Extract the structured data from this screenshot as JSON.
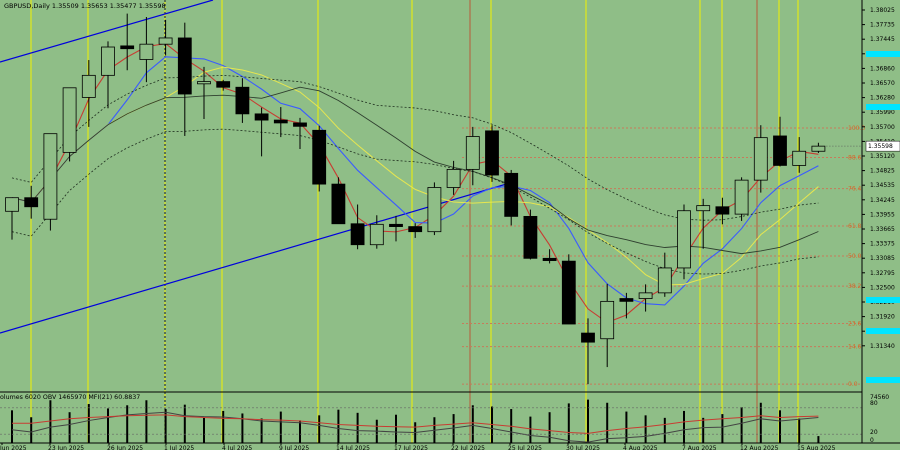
{
  "header": {
    "symbol_line": "GBPUSD,Daily  1.35509  1.35653  1.35477  1.35598"
  },
  "indicator_header": "olumes 6020  OBV 1465970  MFI(21) 60.8837",
  "colors": {
    "background": "#8fbe87",
    "bull_body": "#8fbe87",
    "bear_body": "#000000",
    "vertical_marker": "#f2f200",
    "trendline": "#0000dd",
    "ma_red": "#c83c32",
    "ma_blue": "#3b5bff",
    "ma_yellow": "#e6e650",
    "ma_dark": "#2f3f2f",
    "fib_line": "#c87a5a",
    "fib_label": "#d26a2a",
    "cyan_marker": "#00e5ff",
    "obv": "#444444",
    "mfi": "#c83c32"
  },
  "price_axis": {
    "labels": [
      "1.38025",
      "1.37735",
      "1.37445",
      "1.37155",
      "1.36860",
      "1.36570",
      "1.36280",
      "1.35990",
      "1.35700",
      "1.35410",
      "1.35120",
      "1.34825",
      "1.34535",
      "1.34245",
      "1.33955",
      "1.33665",
      "1.33375",
      "1.33085",
      "1.32795",
      "1.32500",
      "1.32210",
      "1.31920",
      "1.31630",
      "1.31340"
    ],
    "current_price_label": "1.35598"
  },
  "indicator_axis": {
    "labels": [
      "74560",
      "80",
      "20",
      "0"
    ]
  },
  "date_axis": {
    "labels": [
      "Jun 2025",
      "23 Jun 2025",
      "26 Jun 2025",
      "1 Jul 2025",
      "4 Jul 2025",
      "9 Jul 2025",
      "14 Jul 2025",
      "17 Jul 2025",
      "22 Jul 2025",
      "25 Jul 2025",
      "30 Jul 2025",
      "4 Aug 2025",
      "7 Aug 2025",
      "12 Aug 2025",
      "15 Aug 2025"
    ]
  },
  "fib_levels": [
    {
      "label": "100.0",
      "price": 1.3592
    },
    {
      "label": "88.6",
      "price": 1.354
    },
    {
      "label": "76.4",
      "price": 1.3485
    },
    {
      "label": "61.8",
      "price": 1.3419
    },
    {
      "label": "50.0",
      "price": 1.3366
    },
    {
      "label": "38.2",
      "price": 1.3313
    },
    {
      "label": "23.6",
      "price": 1.3247
    },
    {
      "label": "14.6",
      "price": 1.3206
    },
    {
      "label": "0.0",
      "price": 1.314
    }
  ],
  "chart_data": {
    "type": "candlestick",
    "title": "GBPUSD,Daily  1.35509  1.35653  1.35477  1.35598",
    "ylim": [
      1.3126,
      1.3818
    ],
    "ohlc": [
      [
        1.3445,
        1.3469,
        1.3395,
        1.3469
      ],
      [
        1.3469,
        1.349,
        1.3432,
        1.3453
      ],
      [
        1.3431,
        1.3582,
        1.3411,
        1.3582
      ],
      [
        1.3549,
        1.3663,
        1.3533,
        1.3663
      ],
      [
        1.3646,
        1.3712,
        1.3594,
        1.3685
      ],
      [
        1.3685,
        1.3745,
        1.3627,
        1.3735
      ],
      [
        1.3737,
        1.3794,
        1.3694,
        1.3732
      ],
      [
        1.3713,
        1.3788,
        1.3673,
        1.374
      ],
      [
        1.374,
        1.3783,
        1.372,
        1.3751
      ],
      [
        1.3751,
        1.3778,
        1.3578,
        1.3652
      ],
      [
        1.367,
        1.37,
        1.3608,
        1.3674
      ],
      [
        1.3674,
        1.3677,
        1.3658,
        1.3664
      ],
      [
        1.3664,
        1.368,
        1.3601,
        1.3617
      ],
      [
        1.3617,
        1.3628,
        1.3542,
        1.3606
      ],
      [
        1.3606,
        1.3629,
        1.3576,
        1.3601
      ],
      [
        1.3601,
        1.361,
        1.3555,
        1.3595
      ],
      [
        1.3588,
        1.3596,
        1.348,
        1.3493
      ],
      [
        1.3493,
        1.3505,
        1.3426,
        1.3423
      ],
      [
        1.3423,
        1.3457,
        1.3378,
        1.3386
      ],
      [
        1.3386,
        1.3438,
        1.3379,
        1.3422
      ],
      [
        1.3422,
        1.3437,
        1.3392,
        1.3418
      ],
      [
        1.3418,
        1.3424,
        1.3398,
        1.3409
      ],
      [
        1.3409,
        1.3496,
        1.3403,
        1.3487
      ],
      [
        1.3487,
        1.3534,
        1.3474,
        1.3519
      ],
      [
        1.3519,
        1.3594,
        1.3491,
        1.3577
      ],
      [
        1.3587,
        1.3597,
        1.3497,
        1.3509
      ],
      [
        1.3512,
        1.3518,
        1.342,
        1.3436
      ],
      [
        1.3436,
        1.3448,
        1.336,
        1.3362
      ],
      [
        1.3362,
        1.3378,
        1.3353,
        1.3358
      ],
      [
        1.3357,
        1.3369,
        1.3246,
        1.3246
      ],
      [
        1.323,
        1.3256,
        1.314,
        1.3214
      ],
      [
        1.322,
        1.3317,
        1.317,
        1.3286
      ],
      [
        1.3291,
        1.3301,
        1.3256,
        1.3286
      ],
      [
        1.3291,
        1.3316,
        1.3268,
        1.3301
      ],
      [
        1.3301,
        1.3372,
        1.3294,
        1.3345
      ],
      [
        1.3345,
        1.3457,
        1.3325,
        1.3446
      ],
      [
        1.3446,
        1.3467,
        1.3379,
        1.3455
      ],
      [
        1.3453,
        1.3469,
        1.3422,
        1.344
      ],
      [
        1.344,
        1.3505,
        1.3428,
        1.35
      ],
      [
        1.35,
        1.3597,
        1.3478,
        1.3575
      ],
      [
        1.3578,
        1.3612,
        1.3524,
        1.3526
      ],
      [
        1.3526,
        1.3576,
        1.3513,
        1.3551
      ],
      [
        1.3551,
        1.3566,
        1.3548,
        1.356
      ]
    ],
    "indicator": {
      "name": "Volumes / OBV / MFI(21)",
      "volume_values": [
        5.2,
        4.1,
        6.8,
        4.9,
        6.2,
        5.5,
        6.0,
        6.8,
        5.4,
        6.1,
        4.2,
        5.1,
        4.7,
        3.9,
        5.0,
        3.6,
        4.4,
        5.3,
        4.8,
        3.7,
        4.5,
        3.3,
        4.1,
        4.6,
        6.0,
        5.8,
        5.4,
        4.2,
        4.9,
        6.3,
        6.9,
        6.4,
        5.0,
        4.4,
        4.0,
        5.1,
        4.0,
        4.6,
        5.7,
        6.4,
        5.2,
        3.9,
        1.1
      ],
      "obv_values": [
        0.3,
        0.25,
        0.36,
        0.42,
        0.51,
        0.58,
        0.64,
        0.67,
        0.7,
        0.62,
        0.6,
        0.59,
        0.55,
        0.5,
        0.48,
        0.46,
        0.4,
        0.33,
        0.28,
        0.27,
        0.25,
        0.24,
        0.29,
        0.34,
        0.4,
        0.33,
        0.25,
        0.17,
        0.13,
        0.05,
        0.02,
        0.1,
        0.12,
        0.15,
        0.22,
        0.3,
        0.35,
        0.36,
        0.45,
        0.55,
        0.5,
        0.54,
        0.58
      ],
      "mfi_values": [
        0.45,
        0.45,
        0.5,
        0.55,
        0.58,
        0.6,
        0.62,
        0.63,
        0.64,
        0.6,
        0.58,
        0.56,
        0.55,
        0.53,
        0.52,
        0.5,
        0.46,
        0.42,
        0.4,
        0.38,
        0.37,
        0.36,
        0.4,
        0.43,
        0.46,
        0.42,
        0.38,
        0.32,
        0.28,
        0.24,
        0.22,
        0.28,
        0.33,
        0.37,
        0.42,
        0.48,
        0.52,
        0.55,
        0.58,
        0.62,
        0.58,
        0.6,
        0.61
      ]
    }
  }
}
